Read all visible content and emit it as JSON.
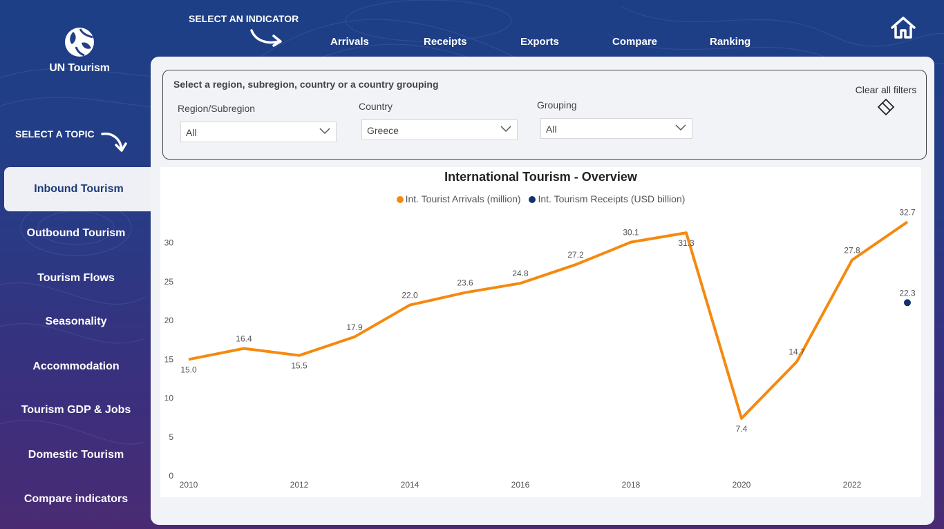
{
  "brand": {
    "name": "UN Tourism"
  },
  "topic_heading": "SELECT A TOPIC",
  "indicator_heading": "SELECT AN INDICATOR",
  "nav": {
    "items": [
      "Arrivals",
      "Receipts",
      "Exports",
      "Compare",
      "Ranking"
    ]
  },
  "sidebar": {
    "items": [
      {
        "label": "Inbound Tourism",
        "active": true
      },
      {
        "label": "Outbound Tourism"
      },
      {
        "label": "Tourism Flows"
      },
      {
        "label": "Seasonality"
      },
      {
        "label": "Accommodation"
      },
      {
        "label": "Tourism GDP & Jobs"
      },
      {
        "label": "Domestic Tourism"
      },
      {
        "label": "Compare indicators"
      }
    ]
  },
  "filters": {
    "title": "Select a region, subregion, country or a country grouping",
    "region": {
      "label": "Region/Subregion",
      "value": "All"
    },
    "country": {
      "label": "Country",
      "value": "Greece"
    },
    "grouping": {
      "label": "Grouping",
      "value": "All"
    },
    "clear_label": "Clear all filters"
  },
  "colors": {
    "arrivals": "#f5890f",
    "receipts": "#13316f",
    "active_text": "#1e3a78"
  },
  "chart_data": {
    "type": "line",
    "title": "International Tourism - Overview",
    "xlabel": "",
    "ylabel": "",
    "ylim": [
      0,
      33
    ],
    "yticks": [
      0,
      5,
      10,
      15,
      20,
      25,
      30
    ],
    "xticks": [
      2010,
      2012,
      2014,
      2016,
      2018,
      2020,
      2022
    ],
    "x": [
      2010,
      2011,
      2012,
      2013,
      2014,
      2015,
      2016,
      2017,
      2018,
      2019,
      2020,
      2021,
      2022,
      2023
    ],
    "legend_position": "top-center",
    "grid": false,
    "series": [
      {
        "name": "Int. Tourist Arrivals (million)",
        "values": [
          15.0,
          16.4,
          15.5,
          17.9,
          22.0,
          23.6,
          24.8,
          27.2,
          30.1,
          31.3,
          7.4,
          14.7,
          27.8,
          32.7
        ],
        "labels": [
          "15.0",
          "16.4",
          "15.5",
          "17.9",
          "22.0",
          "23.6",
          "24.8",
          "27.2",
          "30.1",
          "31.3",
          "7.4",
          "14.7",
          "27.8",
          "32.7"
        ]
      },
      {
        "name": "Int. Tourism Receipts (USD billion)",
        "values": [
          null,
          null,
          null,
          null,
          null,
          null,
          null,
          null,
          null,
          null,
          null,
          null,
          null,
          22.3
        ],
        "labels": [
          "",
          "",
          "",
          "",
          "",
          "",
          "",
          "",
          "",
          "",
          "",
          "",
          "",
          "22.3"
        ]
      }
    ]
  }
}
